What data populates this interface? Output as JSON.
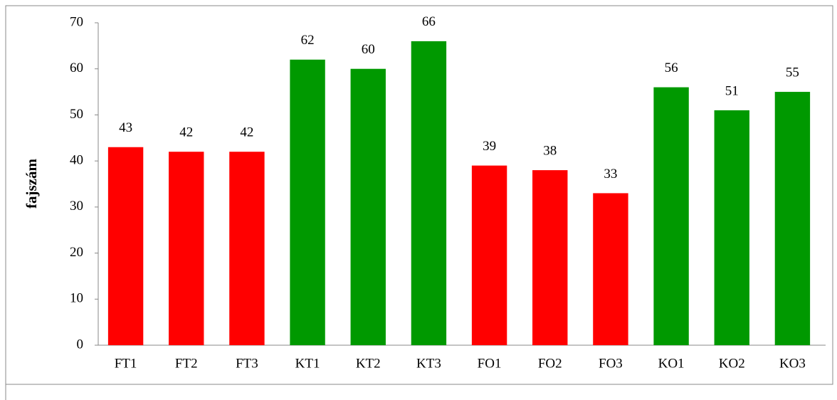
{
  "chart_data": {
    "type": "bar",
    "ylabel": "fajszám",
    "categories": [
      "FT1",
      "FT2",
      "FT3",
      "KT1",
      "KT2",
      "KT3",
      "FO1",
      "FO2",
      "FO3",
      "KO1",
      "KO2",
      "KO3"
    ],
    "values": [
      43,
      42,
      42,
      62,
      60,
      66,
      39,
      38,
      33,
      56,
      51,
      55
    ],
    "colors": [
      "#ff0000",
      "#ff0000",
      "#ff0000",
      "#009900",
      "#009900",
      "#009900",
      "#ff0000",
      "#ff0000",
      "#ff0000",
      "#009900",
      "#009900",
      "#009900"
    ],
    "ylim": [
      0,
      70
    ],
    "yticks": [
      0,
      10,
      20,
      30,
      40,
      50,
      60,
      70
    ],
    "grid": false
  }
}
